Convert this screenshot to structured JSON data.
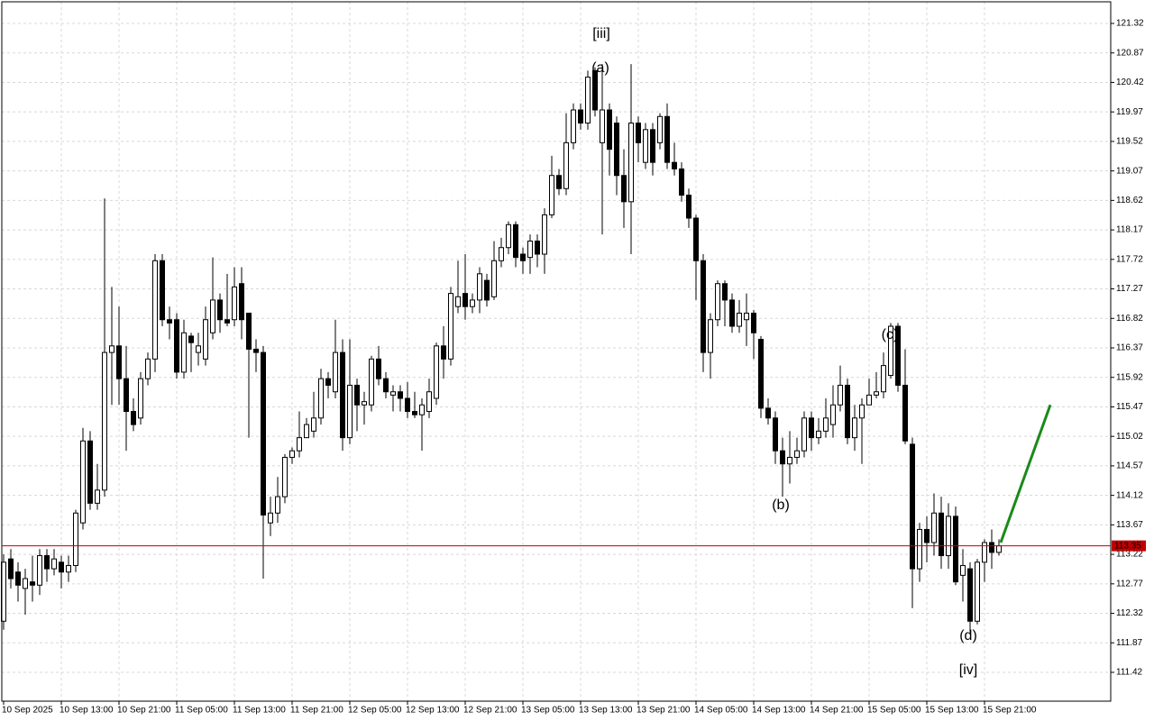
{
  "chart_data": {
    "type": "candlestick",
    "categories": [
      "10 Sep 2025",
      null,
      null,
      null,
      null,
      null,
      null,
      null,
      "10 Sep 13:00",
      null,
      null,
      null,
      null,
      null,
      null,
      null,
      "10 Sep 21:00",
      null,
      null,
      null,
      null,
      null,
      null,
      null,
      "11 Sep 05:00",
      null,
      null,
      null,
      null,
      null,
      null,
      null,
      "11 Sep 13:00",
      null,
      null,
      null,
      null,
      null,
      null,
      null,
      "11 Sep 21:00",
      null,
      null,
      null,
      null,
      null,
      null,
      null,
      "12 Sep 05:00",
      null,
      null,
      null,
      null,
      null,
      null,
      null,
      "12 Sep 13:00",
      null,
      null,
      null,
      null,
      null,
      null,
      null,
      "12 Sep 21:00",
      null,
      null,
      null,
      null,
      null,
      null,
      null,
      "13 Sep 05:00",
      null,
      null,
      null,
      null,
      null,
      null,
      null,
      "13 Sep 13:00",
      null,
      null,
      null,
      null,
      null,
      null,
      null,
      "13 Sep 21:00",
      null,
      null,
      null,
      null,
      null,
      null,
      null,
      "14 Sep 05:00",
      null,
      null,
      null,
      null,
      null,
      null,
      null,
      "14 Sep 13:00",
      null,
      null,
      null,
      null,
      null,
      null,
      null,
      "14 Sep 21:00",
      null,
      null,
      null,
      null,
      null,
      null,
      null,
      "15 Sep 05:00",
      null,
      null,
      null,
      null,
      null,
      null,
      null,
      "15 Sep 13:00",
      null,
      null,
      null,
      null,
      null,
      null,
      null,
      "15 Sep 21:00",
      null,
      null
    ],
    "ohlc": [
      [
        112.2,
        113.22,
        112.07,
        113.1
      ],
      [
        113.15,
        113.3,
        112.7,
        112.85
      ],
      [
        112.95,
        113.1,
        112.5,
        112.75
      ],
      [
        112.7,
        113.0,
        112.3,
        112.85
      ],
      [
        112.8,
        113.2,
        112.5,
        112.75
      ],
      [
        112.75,
        113.3,
        112.6,
        113.2
      ],
      [
        113.2,
        113.3,
        112.8,
        113.0
      ],
      [
        113.0,
        113.3,
        112.9,
        113.15
      ],
      [
        113.1,
        113.2,
        112.7,
        112.95
      ],
      [
        112.95,
        113.2,
        112.8,
        113.05
      ],
      [
        113.05,
        113.9,
        112.95,
        113.85
      ],
      [
        113.7,
        115.15,
        113.6,
        114.95
      ],
      [
        114.95,
        115.1,
        113.9,
        114.0
      ],
      [
        114.0,
        114.6,
        113.9,
        114.2
      ],
      [
        114.2,
        118.65,
        114.1,
        116.3
      ],
      [
        116.3,
        117.3,
        115.5,
        116.4
      ],
      [
        116.4,
        117.0,
        115.5,
        115.9
      ],
      [
        115.9,
        116.4,
        114.8,
        115.4
      ],
      [
        115.4,
        115.6,
        115.1,
        115.2
      ],
      [
        115.3,
        116.0,
        115.2,
        115.9
      ],
      [
        115.9,
        116.3,
        115.8,
        116.2
      ],
      [
        116.2,
        117.8,
        116.0,
        117.7
      ],
      [
        117.7,
        117.8,
        116.7,
        116.8
      ],
      [
        116.8,
        117.0,
        116.5,
        116.75
      ],
      [
        116.8,
        116.9,
        115.9,
        116.0
      ],
      [
        116.0,
        116.8,
        115.9,
        116.6
      ],
      [
        116.55,
        116.6,
        116.0,
        116.45
      ],
      [
        116.3,
        116.6,
        116.1,
        116.4
      ],
      [
        116.2,
        117.0,
        116.1,
        116.8
      ],
      [
        116.6,
        117.75,
        116.5,
        117.1
      ],
      [
        117.1,
        117.2,
        116.6,
        116.8
      ],
      [
        116.8,
        117.5,
        116.7,
        116.75
      ],
      [
        116.8,
        117.6,
        116.7,
        117.3
      ],
      [
        117.35,
        117.6,
        116.5,
        116.8
      ],
      [
        116.9,
        116.9,
        115.0,
        116.35
      ],
      [
        116.35,
        116.5,
        116.0,
        116.3
      ],
      [
        116.3,
        116.4,
        112.85,
        113.82
      ],
      [
        113.7,
        114.1,
        113.5,
        113.85
      ],
      [
        113.85,
        114.4,
        113.7,
        114.1
      ],
      [
        114.1,
        114.75,
        114.0,
        114.7
      ],
      [
        114.7,
        114.85,
        114.6,
        114.8
      ],
      [
        114.8,
        115.4,
        114.7,
        115.0
      ],
      [
        115.0,
        115.3,
        115.0,
        115.2
      ],
      [
        115.1,
        115.7,
        115.0,
        115.3
      ],
      [
        115.3,
        116.05,
        115.2,
        115.9
      ],
      [
        115.9,
        116.0,
        115.6,
        115.8
      ],
      [
        115.7,
        116.8,
        115.6,
        116.3
      ],
      [
        116.3,
        116.5,
        114.8,
        115.0
      ],
      [
        115.0,
        116.5,
        114.9,
        115.8
      ],
      [
        115.8,
        115.9,
        115.1,
        115.5
      ],
      [
        115.5,
        115.7,
        115.2,
        115.55
      ],
      [
        115.5,
        116.25,
        115.4,
        116.2
      ],
      [
        116.2,
        116.4,
        115.8,
        115.9
      ],
      [
        115.9,
        116.0,
        115.6,
        115.7
      ],
      [
        115.65,
        115.8,
        115.4,
        115.7
      ],
      [
        115.7,
        115.8,
        115.4,
        115.6
      ],
      [
        115.6,
        115.85,
        115.3,
        115.4
      ],
      [
        115.4,
        115.7,
        115.3,
        115.35
      ],
      [
        115.35,
        115.6,
        114.8,
        115.5
      ],
      [
        115.4,
        115.9,
        115.3,
        115.7
      ],
      [
        115.6,
        116.45,
        115.5,
        116.4
      ],
      [
        116.4,
        116.7,
        115.9,
        116.2
      ],
      [
        116.2,
        117.3,
        116.1,
        117.2
      ],
      [
        117.0,
        117.7,
        116.9,
        117.15
      ],
      [
        117.2,
        117.8,
        116.8,
        117.0
      ],
      [
        117.0,
        117.2,
        116.9,
        117.1
      ],
      [
        117.1,
        117.6,
        116.9,
        117.5
      ],
      [
        117.4,
        117.5,
        117.0,
        117.1
      ],
      [
        117.15,
        118.0,
        117.1,
        117.7
      ],
      [
        117.7,
        118.05,
        117.6,
        117.9
      ],
      [
        117.9,
        118.3,
        117.8,
        118.25
      ],
      [
        118.25,
        118.3,
        117.6,
        117.75
      ],
      [
        117.8,
        117.9,
        117.5,
        117.7
      ],
      [
        117.75,
        118.1,
        117.5,
        118.0
      ],
      [
        118.0,
        118.1,
        117.6,
        117.8
      ],
      [
        117.8,
        118.5,
        117.5,
        118.4
      ],
      [
        118.4,
        119.3,
        118.35,
        119.0
      ],
      [
        119.0,
        119.1,
        118.7,
        118.8
      ],
      [
        118.8,
        119.95,
        118.7,
        119.5
      ],
      [
        119.5,
        120.1,
        119.4,
        120.0
      ],
      [
        120.0,
        120.1,
        119.7,
        119.8
      ],
      [
        119.8,
        120.6,
        119.7,
        120.5
      ],
      [
        120.6,
        120.65,
        119.9,
        120.0
      ],
      [
        119.5,
        120.7,
        118.1,
        120.0
      ],
      [
        120.0,
        120.1,
        119.0,
        119.4
      ],
      [
        119.8,
        119.9,
        118.7,
        119.0
      ],
      [
        119.0,
        119.4,
        118.2,
        118.6
      ],
      [
        118.6,
        120.7,
        117.8,
        119.8
      ],
      [
        119.8,
        119.9,
        119.2,
        119.5
      ],
      [
        119.2,
        119.8,
        119.1,
        119.7
      ],
      [
        119.7,
        119.8,
        119.0,
        119.2
      ],
      [
        119.5,
        119.95,
        119.4,
        119.9
      ],
      [
        119.9,
        120.1,
        119.1,
        119.2
      ],
      [
        119.2,
        119.5,
        119.0,
        119.1
      ],
      [
        119.1,
        119.2,
        118.6,
        118.7
      ],
      [
        118.7,
        118.8,
        118.2,
        118.35
      ],
      [
        118.35,
        118.4,
        117.1,
        117.7
      ],
      [
        117.7,
        117.8,
        116.0,
        116.3
      ],
      [
        116.3,
        116.9,
        115.9,
        116.8
      ],
      [
        116.8,
        117.4,
        116.7,
        117.35
      ],
      [
        117.35,
        117.4,
        116.7,
        117.1
      ],
      [
        117.1,
        117.2,
        116.6,
        116.7
      ],
      [
        116.7,
        117.1,
        116.6,
        116.9
      ],
      [
        116.8,
        117.2,
        116.4,
        116.9
      ],
      [
        116.9,
        116.95,
        116.2,
        116.6
      ],
      [
        116.5,
        116.55,
        115.3,
        115.45
      ],
      [
        115.45,
        115.6,
        115.2,
        115.3
      ],
      [
        115.3,
        115.4,
        114.6,
        114.8
      ],
      [
        114.8,
        115.0,
        114.1,
        114.6
      ],
      [
        114.6,
        115.1,
        114.3,
        114.7
      ],
      [
        114.7,
        115.0,
        114.6,
        114.8
      ],
      [
        114.8,
        115.4,
        114.7,
        115.3
      ],
      [
        115.3,
        115.4,
        114.8,
        115.0
      ],
      [
        115.0,
        115.3,
        114.9,
        115.1
      ],
      [
        115.1,
        115.6,
        115.0,
        115.3
      ],
      [
        115.2,
        115.8,
        115.0,
        115.5
      ],
      [
        115.5,
        116.1,
        115.4,
        115.8
      ],
      [
        115.8,
        115.9,
        114.9,
        115.0
      ],
      [
        115.0,
        115.5,
        114.8,
        115.3
      ],
      [
        115.3,
        115.6,
        114.6,
        115.5
      ],
      [
        115.5,
        115.9,
        115.5,
        115.65
      ],
      [
        115.65,
        116.0,
        115.6,
        115.7
      ],
      [
        115.7,
        116.3,
        115.6,
        116.1
      ],
      [
        115.95,
        116.75,
        115.9,
        116.7
      ],
      [
        116.7,
        116.75,
        115.7,
        115.8
      ],
      [
        115.8,
        116.35,
        114.9,
        114.95
      ],
      [
        114.9,
        115.0,
        112.4,
        113.0
      ],
      [
        113.0,
        113.7,
        112.8,
        113.6
      ],
      [
        113.6,
        113.8,
        113.1,
        113.4
      ],
      [
        113.4,
        114.15,
        113.2,
        113.85
      ],
      [
        113.85,
        114.1,
        113.0,
        113.2
      ],
      [
        113.2,
        114.0,
        113.0,
        113.8
      ],
      [
        113.8,
        113.95,
        112.75,
        112.8
      ],
      [
        112.9,
        113.3,
        112.5,
        113.05
      ],
      [
        113.0,
        113.1,
        112.0,
        112.2
      ],
      [
        112.2,
        113.15,
        112.15,
        113.1
      ],
      [
        113.1,
        113.45,
        112.8,
        113.4
      ],
      [
        113.4,
        113.6,
        113.0,
        113.25
      ],
      [
        113.25,
        113.45,
        113.2,
        113.35
      ]
    ],
    "ylim": [
      110.98,
      121.65
    ],
    "yticks": [
      111.42,
      111.87,
      112.32,
      112.77,
      113.22,
      113.67,
      114.12,
      114.57,
      115.02,
      115.47,
      115.92,
      116.37,
      116.82,
      117.27,
      117.72,
      118.17,
      118.62,
      119.07,
      119.52,
      119.97,
      120.42,
      120.87,
      121.32
    ],
    "grid": true,
    "current_price": 113.35,
    "current_price_color": "#c00000",
    "forecast": {
      "color": "#1a8a1a",
      "values": [
        113.4,
        115.5
      ]
    },
    "annotations": [
      {
        "text": "[iii]",
        "color": "#3cc83c"
      },
      {
        "text": "(a)",
        "color": "#2233cc"
      },
      {
        "text": "(b)",
        "color": "#2233cc"
      },
      {
        "text": "(c)",
        "color": "#2233cc"
      },
      {
        "text": "(d)",
        "color": "#2233cc"
      },
      {
        "text": "[iv]",
        "color": "#3cc83c"
      }
    ]
  }
}
